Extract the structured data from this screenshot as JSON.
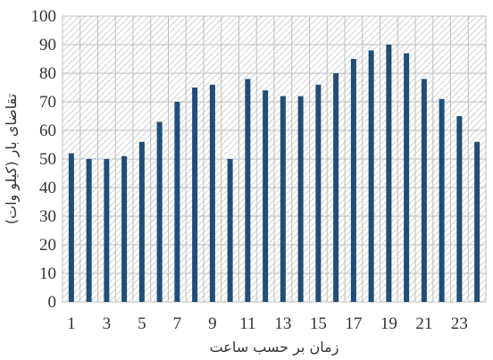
{
  "chart_data": {
    "type": "bar",
    "categories": [
      "1",
      "2",
      "3",
      "4",
      "5",
      "6",
      "7",
      "8",
      "9",
      "10",
      "11",
      "12",
      "13",
      "14",
      "15",
      "16",
      "17",
      "18",
      "19",
      "20",
      "21",
      "22",
      "23",
      "24"
    ],
    "x_tick_labels": [
      "1",
      "3",
      "5",
      "7",
      "9",
      "11",
      "13",
      "15",
      "17",
      "19",
      "21",
      "23"
    ],
    "values": [
      52,
      50,
      50,
      51,
      56,
      63,
      70,
      75,
      76,
      50,
      78,
      74,
      72,
      72,
      76,
      80,
      85,
      88,
      90,
      87,
      78,
      71,
      65,
      56
    ],
    "xlabel": "زمان بر حسب ساعت",
    "ylabel": "تقاضای بار (کیلو وات)",
    "ylim": [
      0,
      100
    ],
    "y_ticks": [
      0,
      10,
      20,
      30,
      40,
      50,
      60,
      70,
      80,
      90,
      100
    ],
    "grid": true,
    "plot_background": "hatched",
    "colors": {
      "bar": "#1f4e79",
      "hatch": "#c8c8c8",
      "grid": "#bfbfbf",
      "text": "#333333"
    }
  }
}
